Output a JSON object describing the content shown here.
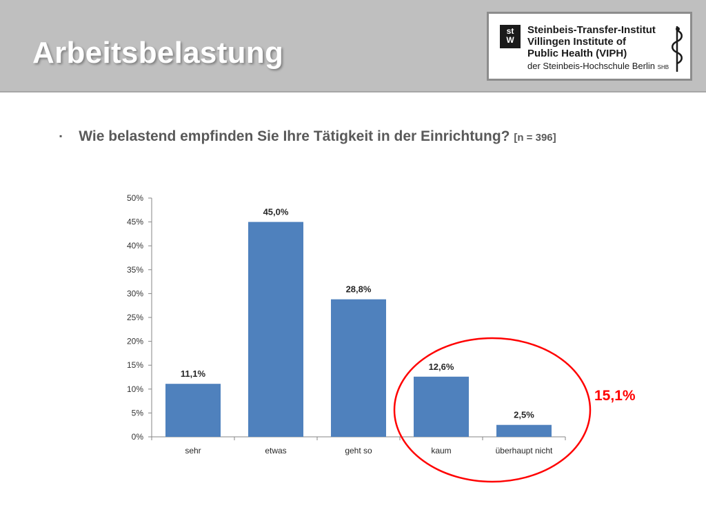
{
  "slide": {
    "title": "Arbeitsbelastung",
    "bullet": "▪",
    "question": "Wie belastend empfinden Sie Ihre Tätigkeit in der Einrichtung?",
    "sample": "[n = 396]"
  },
  "logo": {
    "mark_top": "st",
    "mark_bottom": "W",
    "line1": "Steinbeis-Transfer-Institut",
    "line2": "Villingen Institute of",
    "line3": "Public Health (VIPH)",
    "line4": "der Steinbeis-Hochschule Berlin",
    "line4_suffix": "SHB",
    "icon": "aesculapian-staff-icon"
  },
  "highlight": {
    "total_label": "15,1%",
    "color": "#ff0000",
    "categories": [
      "kaum",
      "überhaupt nicht"
    ]
  },
  "chart_data": {
    "type": "bar",
    "categories": [
      "sehr",
      "etwas",
      "geht so",
      "kaum",
      "überhaupt nicht"
    ],
    "values": [
      11.1,
      45.0,
      28.8,
      12.6,
      2.5
    ],
    "data_labels": [
      "11,1%",
      "45,0%",
      "28,8%",
      "12,6%",
      "2,5%"
    ],
    "ylim": [
      0,
      50
    ],
    "yticks": [
      "0%",
      "5%",
      "10%",
      "15%",
      "20%",
      "25%",
      "30%",
      "35%",
      "40%",
      "45%",
      "50%"
    ],
    "bar_color": "#4f81bd",
    "grid": false,
    "legend": "none"
  }
}
